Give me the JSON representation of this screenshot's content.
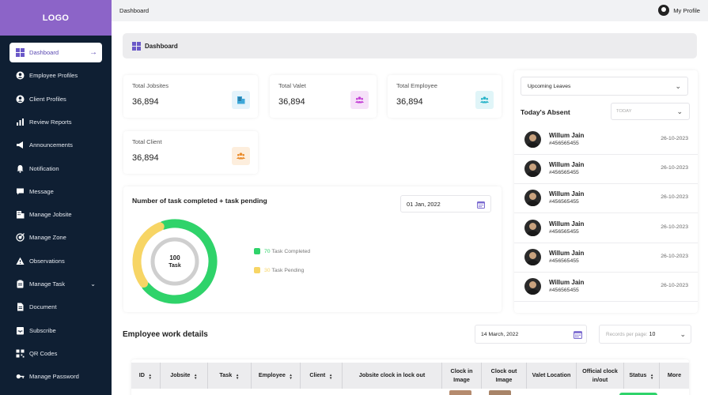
{
  "logo": "LOGO",
  "sidebar": {
    "items": [
      {
        "label": "Dashboard",
        "icon": "dashboard-icon",
        "active": true
      },
      {
        "label": "Employee Profiles",
        "icon": "user-circle-icon"
      },
      {
        "label": "Client Profiles",
        "icon": "user-circle-icon"
      },
      {
        "label": "Review Reports",
        "icon": "bar-chart-icon"
      },
      {
        "label": "Announcements",
        "icon": "megaphone-icon"
      },
      {
        "label": "Notification",
        "icon": "bell-icon"
      },
      {
        "label": "Message",
        "icon": "chat-icon"
      },
      {
        "label": "Manage Jobsite",
        "icon": "building-icon"
      },
      {
        "label": "Manage Zone",
        "icon": "target-icon"
      },
      {
        "label": "Observations",
        "icon": "warning-icon"
      },
      {
        "label": "Manage Task",
        "icon": "clipboard-icon",
        "expandable": true
      },
      {
        "label": "Document",
        "icon": "document-icon"
      },
      {
        "label": "Subscribe",
        "icon": "inbox-icon"
      },
      {
        "label": "QR Codes",
        "icon": "qr-code-icon"
      },
      {
        "label": "Manage Password",
        "icon": "key-icon"
      }
    ]
  },
  "topbar": {
    "title": "Dashboard",
    "profile": "My Profile"
  },
  "breadcrumb": "Dashboard",
  "stats": [
    {
      "label": "Total Jobsites",
      "value": "36,894",
      "icon": "building-icon",
      "color": "#3da7d9",
      "bg": "#e4f3fb"
    },
    {
      "label": "Total Valet",
      "value": "36,894",
      "icon": "people-icon",
      "color": "#c33fd6",
      "bg": "#f6e1f9"
    },
    {
      "label": "Total Employee",
      "value": "36,894",
      "icon": "people-icon",
      "color": "#2ab4c9",
      "bg": "#e0f5f8"
    },
    {
      "label": "Total Client",
      "value": "36,894",
      "icon": "people-icon",
      "color": "#ea8b2b",
      "bg": "#fdeedd"
    }
  ],
  "task_chart": {
    "title": "Number of task completed + task pending",
    "date": "01 Jan, 2022",
    "center_value": "100",
    "center_label": "Task",
    "completed_color": "#2fd36a",
    "pending_color": "#f7d565",
    "legend": [
      {
        "num": "70",
        "label": "Task Completed"
      },
      {
        "num": "30",
        "label": "Task Pending"
      }
    ]
  },
  "chart_data": {
    "type": "pie",
    "categories": [
      "Task Completed",
      "Task Pending"
    ],
    "values": [
      70,
      30
    ],
    "title": "Number of task completed + task pending"
  },
  "leaves": {
    "select_label": "Upcoming Leaves",
    "absent_title": "Today's Absent",
    "filter_placeholder": "TODAY",
    "people": [
      {
        "name": "Willum Jain",
        "id": "#456565455",
        "date": "26-10-2023"
      },
      {
        "name": "Willum Jain",
        "id": "#456565455",
        "date": "26-10-2023"
      },
      {
        "name": "Willum Jain",
        "id": "#456565455",
        "date": "26-10-2023"
      },
      {
        "name": "Willum Jain",
        "id": "#456565455",
        "date": "26-10-2023"
      },
      {
        "name": "Willum Jain",
        "id": "#456565455",
        "date": "26-10-2023"
      },
      {
        "name": "Willum Jain",
        "id": "#456565455",
        "date": "26-10-2023"
      }
    ]
  },
  "work": {
    "title": "Employee work details",
    "date": "14 March, 2022",
    "records_label": "Records per page:",
    "records_value": "10",
    "columns": [
      "ID",
      "Jobsite",
      "Task",
      "Employee",
      "Client",
      "Jobsite clock in lock out",
      "Clock in Image",
      "Clock out Image",
      "Valet Location",
      "Official clock in/out",
      "Status",
      "More"
    ]
  }
}
